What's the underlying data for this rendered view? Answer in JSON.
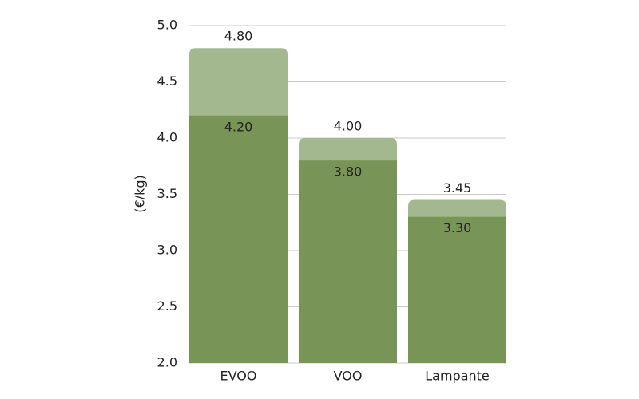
{
  "chart_data": {
    "type": "bar",
    "categories": [
      "EVOO",
      "VOO",
      "Lampante"
    ],
    "series": [
      {
        "color": "#a3b88f",
        "values": [
          4.8,
          4.0,
          3.45
        ],
        "value_labels": [
          "4.80",
          "4.00",
          "3.45"
        ]
      },
      {
        "color": "#789557",
        "values": [
          4.2,
          3.8,
          3.3
        ],
        "value_labels": [
          "4.20",
          "3.80",
          "3.30"
        ]
      }
    ],
    "y_label": "(€/kg)",
    "ylim": [
      2.0,
      5.0
    ],
    "yticks": [
      {
        "value": 2,
        "label": "2.0"
      },
      {
        "value": 2.5,
        "label": "2.5"
      },
      {
        "value": 3,
        "label": "3.0"
      },
      {
        "value": 3.5,
        "label": "3.5"
      },
      {
        "value": 4,
        "label": "4.0"
      },
      {
        "value": 4.5,
        "label": "4.5"
      },
      {
        "value": 5,
        "label": "5.0"
      }
    ],
    "grid": true
  }
}
